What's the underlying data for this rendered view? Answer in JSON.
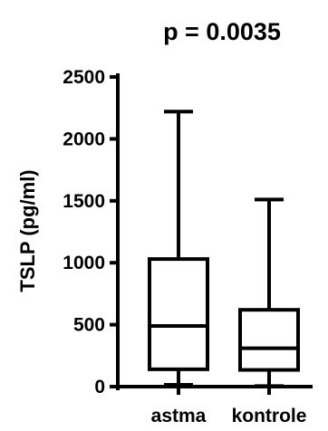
{
  "chart_data": {
    "type": "boxplot",
    "title": "p = 0.0035",
    "xlabel": "",
    "ylabel": "TSLP (pg/ml)",
    "ylim": [
      0,
      2500
    ],
    "yticks": [
      0,
      500,
      1000,
      1500,
      2000,
      2500
    ],
    "ytick_labels": [
      "0",
      "500",
      "1000",
      "1500",
      "2000",
      "2500"
    ],
    "categories": [
      "astma",
      "kontrole"
    ],
    "boxes": [
      {
        "category": "astma",
        "min": 15,
        "q1": 140,
        "median": 490,
        "q3": 1030,
        "max": 2220
      },
      {
        "category": "kontrole",
        "min": 5,
        "q1": 135,
        "median": 310,
        "q3": 620,
        "max": 1510
      }
    ],
    "grid": false,
    "legend": "none"
  }
}
